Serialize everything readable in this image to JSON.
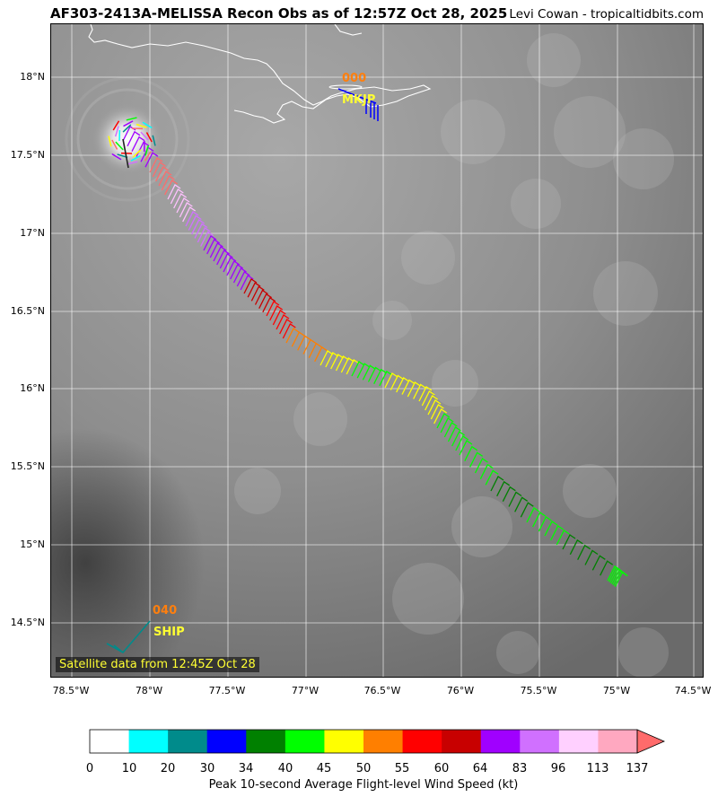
{
  "header": {
    "title": "AF303-2413A-MELISSA Recon Obs as of 12:57Z Oct 28, 2025",
    "credit": "Levi Cowan - tropicaltidbits.com"
  },
  "map": {
    "lat_labels": [
      "18°N",
      "17.5°N",
      "17°N",
      "16.5°N",
      "16°N",
      "15.5°N",
      "15°N",
      "14.5°N"
    ],
    "lon_labels": [
      "78.5°W",
      "78°W",
      "77.5°W",
      "77°W",
      "76.5°W",
      "76°W",
      "75.5°W",
      "75°W",
      "74.5°W"
    ],
    "satellite_caption": "Satellite data from 12:45Z Oct 28",
    "stations": [
      {
        "id": "MKJP",
        "speed": "000"
      },
      {
        "id": "SHIP",
        "speed": "040"
      }
    ],
    "colors": {
      "coast": "#ffffff",
      "grid": "#ffffff",
      "label_orange": "#ff7f0e",
      "label_yellow": "#ffff33"
    }
  },
  "colorbar": {
    "title": "Peak 10-second Average Flight-level Wind Speed (kt)",
    "ticks": [
      "0",
      "10",
      "20",
      "30",
      "34",
      "40",
      "45",
      "50",
      "55",
      "60",
      "64",
      "83",
      "96",
      "113",
      "137"
    ],
    "colors": [
      "#ffffff",
      "#00ffff",
      "#008b8b",
      "#0000ff",
      "#008000",
      "#00ff00",
      "#ffff00",
      "#ff7f00",
      "#ff0000",
      "#c80000",
      "#a000ff",
      "#d070ff",
      "#ffd0ff",
      "#ffa8c0"
    ]
  }
}
